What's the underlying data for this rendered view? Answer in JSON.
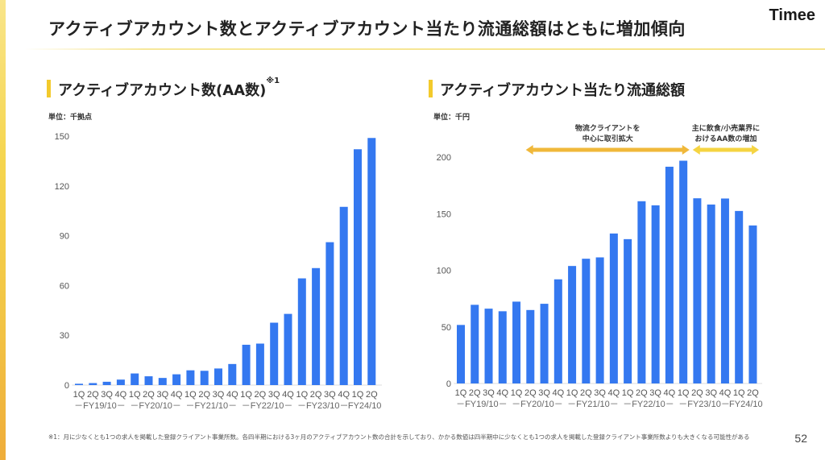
{
  "page": {
    "title": "アクティブアカウント数とアクティブアカウント当たり流通総額はともに増加傾向",
    "brand": "Timee",
    "page_number": "52",
    "footnote": "※1：月に少なくとも1つの求人を掲載した登録クライアント事業所数。各四半期における3ヶ月のアクティブアカウント数の合計を示しており、かかる数値は四半期中に少なくとも1つの求人を掲載した登録クライアント事業所数よりも大きくなる可能性がある",
    "colors": {
      "bar": "#3478f0",
      "accent": "#f3ca2c",
      "arrow1": "#f0b83a",
      "arrow2": "#f5d442"
    }
  },
  "chart_data": [
    {
      "type": "bar",
      "title": "アクティブアカウント数(AA数)",
      "title_sup": "※1",
      "unit": "単位：千拠点",
      "xlabel": "",
      "ylabel": "",
      "ylim": [
        0,
        150
      ],
      "yticks": [
        "0",
        "30",
        "60",
        "90",
        "120",
        "150"
      ],
      "ytick_values": [
        0,
        30,
        60,
        90,
        120,
        150
      ],
      "grid": false,
      "categories": [
        "1Q",
        "2Q",
        "3Q",
        "4Q",
        "1Q",
        "2Q",
        "3Q",
        "4Q",
        "1Q",
        "2Q",
        "3Q",
        "4Q",
        "1Q",
        "2Q",
        "3Q",
        "4Q",
        "1Q",
        "2Q",
        "3Q",
        "4Q",
        "1Q",
        "2Q"
      ],
      "fiscal_years": [
        "FY19/10",
        "FY20/10",
        "FY21/10",
        "FY22/10",
        "FY23/10",
        "FY24/10"
      ],
      "fiscal_year_labels": [
        "－FY19/10－",
        "－FY20/10－",
        "－FY21/10－",
        "－FY22/10－",
        "－FY23/10－",
        "FY24/10"
      ],
      "values": [
        0.8,
        1.2,
        2.0,
        3.3,
        7.0,
        5.3,
        4.3,
        6.5,
        8.9,
        8.6,
        10.0,
        12.7,
        24.3,
        25.0,
        37.6,
        42.9,
        64.3,
        70.5,
        86.1,
        107.4,
        142.1,
        148.9
      ]
    },
    {
      "type": "bar",
      "title": "アクティブアカウント当たり流通総額",
      "unit": "単位：千円",
      "xlabel": "",
      "ylabel": "",
      "ylim": [
        0,
        200
      ],
      "yticks": [
        "0",
        "50",
        "100",
        "150",
        "200"
      ],
      "ytick_values": [
        0,
        50,
        100,
        150,
        200
      ],
      "grid": false,
      "categories": [
        "1Q",
        "2Q",
        "3Q",
        "4Q",
        "1Q",
        "2Q",
        "3Q",
        "4Q",
        "1Q",
        "2Q",
        "3Q",
        "4Q",
        "1Q",
        "2Q",
        "3Q",
        "4Q",
        "1Q",
        "2Q",
        "3Q",
        "4Q",
        "1Q",
        "2Q"
      ],
      "fiscal_years": [
        "FY19/10",
        "FY20/10",
        "FY21/10",
        "FY22/10",
        "FY23/10",
        "FY24/10"
      ],
      "fiscal_year_labels": [
        "－FY19/10－",
        "－FY20/10－",
        "－FY21/10－",
        "－FY22/10－",
        "－FY23/10－",
        "FY24/10"
      ],
      "values": [
        51.7,
        69.5,
        66.1,
        63.8,
        72.3,
        64.9,
        70.4,
        92.0,
        103.8,
        110.2,
        111.4,
        132.5,
        127.5,
        161.0,
        157.4,
        191.5,
        196.8,
        163.6,
        158.1,
        163.4,
        152.4,
        139.6
      ],
      "annotations": [
        {
          "text_lines": [
            "物流クライアントを",
            "中心に取引拡大"
          ],
          "from_index": 5,
          "to_index": 16
        },
        {
          "text_lines": [
            "主に飲食/小売業界に",
            "おけるAA数の増加"
          ],
          "from_index": 17,
          "to_index": 21
        }
      ]
    }
  ]
}
